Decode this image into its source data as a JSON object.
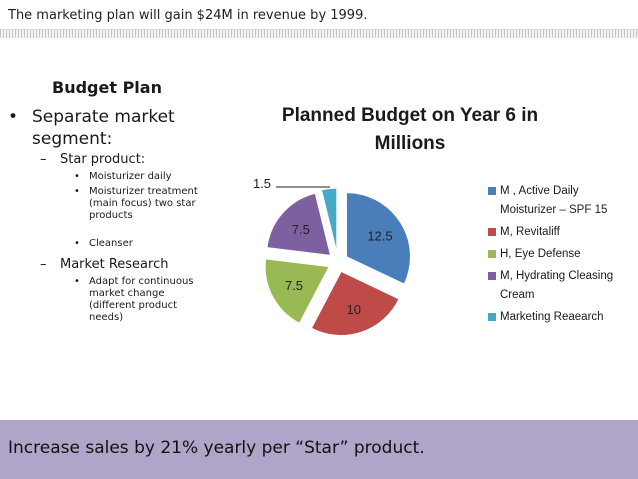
{
  "header": {
    "text": "The marketing plan will gain $24M in revenue by 1999."
  },
  "left": {
    "title": "Budget Plan",
    "bullet": "Separate market segment:",
    "bullet_marker": "•",
    "dash_marker": "–",
    "dot_marker": "•",
    "star_product": "Star product:",
    "star_items": [
      "Moisturizer daily",
      "Moisturizer treatment (main focus) two star products",
      "Cleanser"
    ],
    "market_research": "Market Research",
    "research_items": [
      "Adapt for continuous market change (different product needs)"
    ]
  },
  "footer": {
    "text": "Increase sales by 21% yearly per “Star” product."
  },
  "chart_data": {
    "type": "pie",
    "title": "Planned Budget on Year 6 in Millions",
    "categories": [
      "M , Active Daily Moisturizer – SPF 15",
      "M,  Revitaliff",
      "H,  Eye Defense",
      "M,  Hydrating Cleasing Cream",
      "Marketing Reaearch"
    ],
    "values": [
      12.5,
      10,
      7.5,
      7.5,
      1.5
    ],
    "labels": [
      "12.5",
      "10",
      "7.5",
      "7.5",
      "1.5"
    ],
    "colors": [
      "#4a7ebb",
      "#be4b48",
      "#98b954",
      "#7d60a0",
      "#46aac5"
    ],
    "exploded": true,
    "legend_position": "right"
  }
}
